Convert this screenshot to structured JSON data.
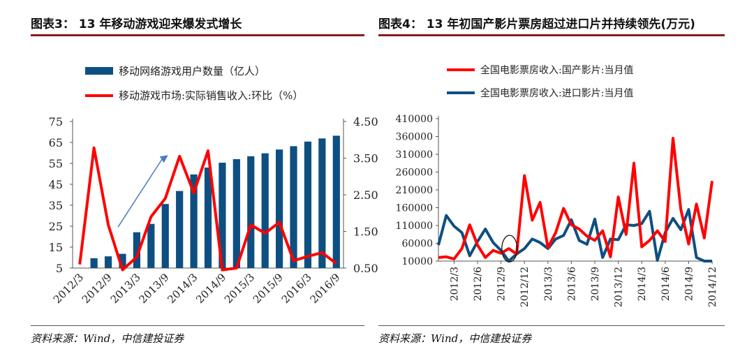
{
  "left": {
    "title": "图表3： 13 年移动游戏迎来爆发式增长",
    "source": "资料来源：Wind，中信建投证券",
    "chart_data": {
      "type": "bar+line",
      "legend_position": "top",
      "grid": false,
      "colors": {
        "bar": "#0e4f82",
        "line": "#ff0000",
        "arrow": "#4a7cc0"
      },
      "x": [
        "2012/3",
        "2012/6",
        "2012/9",
        "2012/12",
        "2013/3",
        "2013/6",
        "2013/9",
        "2013/12",
        "2014/3",
        "2014/6",
        "2014/9",
        "2014/12",
        "2015/3",
        "2015/6",
        "2015/9",
        "2015/12",
        "2016/3",
        "2016/6",
        "2016/9"
      ],
      "x_tick_labels": [
        "2012/3",
        "2012/9",
        "2013/3",
        "2013/9",
        "2014/3",
        "2014/9",
        "2015/3",
        "2015/9",
        "2016/3",
        "2016/9"
      ],
      "y_left": {
        "lim": [
          5,
          75
        ],
        "ticks": [
          "75",
          "65",
          "55",
          "45",
          "35",
          "25",
          "15",
          "5"
        ]
      },
      "y_right": {
        "lim": [
          0.5,
          4.5
        ],
        "ticks": [
          "4.50",
          "3.50",
          "2.50",
          "1.50",
          "0.50"
        ]
      },
      "series": [
        {
          "name": "移动网络游戏用户数量（亿人）",
          "type": "bar",
          "axis": "left",
          "values": [
            null,
            9.7,
            10.6,
            11.8,
            22.1,
            26.1,
            35.6,
            41.8,
            49.7,
            53.0,
            55.3,
            57.0,
            58.4,
            59.8,
            61.6,
            63.2,
            65.4,
            66.9,
            68.2
          ]
        },
        {
          "name": "移动游戏市场:实际销售收入:环比（%）",
          "type": "line",
          "axis": "right",
          "values": [
            0.6,
            3.78,
            1.68,
            0.45,
            0.8,
            1.9,
            2.4,
            3.55,
            2.55,
            3.7,
            0.45,
            0.5,
            1.68,
            1.45,
            1.75,
            0.7,
            0.82,
            0.92,
            0.62
          ]
        }
      ]
    }
  },
  "right": {
    "title": "图表4： 13 年初国产影片票房超过进口片并持续领先(万元)",
    "source": "资料来源：Wind，中信建投证券",
    "chart_data": {
      "type": "line",
      "legend_position": "top",
      "grid": false,
      "colors": {
        "domestic": "#ff0000",
        "imported": "#0e4f82"
      },
      "x": [
        "2012/1",
        "2012/2",
        "2012/3",
        "2012/4",
        "2012/5",
        "2012/6",
        "2012/7",
        "2012/8",
        "2012/9",
        "2012/10",
        "2012/11",
        "2012/12",
        "2013/1",
        "2013/2",
        "2013/3",
        "2013/4",
        "2013/5",
        "2013/6",
        "2013/7",
        "2013/8",
        "2013/9",
        "2013/10",
        "2013/11",
        "2013/12",
        "2014/1",
        "2014/2",
        "2014/3",
        "2014/4",
        "2014/5",
        "2014/6",
        "2014/7",
        "2014/8",
        "2014/9",
        "2014/10",
        "2014/11",
        "2014/12"
      ],
      "x_tick_labels": [
        "2012/3",
        "2012/6",
        "2012/9",
        "2012/12",
        "2013/3",
        "2013/6",
        "2013/9",
        "2013/12",
        "2014/3",
        "2014/6",
        "2014/9",
        "2014/12"
      ],
      "y": {
        "lim": [
          10000,
          410000
        ],
        "ticks": [
          "410000",
          "360000",
          "310000",
          "260000",
          "210000",
          "160000",
          "110000",
          "60000",
          "10000"
        ]
      },
      "series": [
        {
          "name": "全国电影票房收入:国产影片:当月值",
          "values": [
            20000,
            22000,
            16000,
            45000,
            112000,
            55000,
            20000,
            40000,
            32000,
            45000,
            30000,
            250000,
            125000,
            175000,
            48000,
            90000,
            158000,
            112000,
            100000,
            80000,
            68000,
            95000,
            22000,
            190000,
            85000,
            285000,
            50000,
            68000,
            95000,
            65000,
            355000,
            155000,
            58000,
            170000,
            75000,
            235000
          ]
        },
        {
          "name": "全国电影票房收入:进口影片:当月值",
          "values": [
            55000,
            138000,
            108000,
            90000,
            25000,
            65000,
            100000,
            62000,
            40000,
            10000,
            30000,
            45000,
            72000,
            62000,
            45000,
            72000,
            82000,
            126000,
            68000,
            57000,
            128000,
            20000,
            72000,
            70000,
            112000,
            110000,
            115000,
            150000,
            12000,
            90000,
            130000,
            98000,
            155000,
            20000,
            0,
            0
          ]
        }
      ]
    }
  }
}
